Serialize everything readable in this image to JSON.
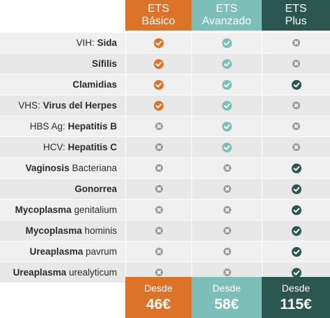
{
  "plans": [
    {
      "line1": "ETS",
      "line2": "Básico",
      "price_prefix": "Desde",
      "price": "46€",
      "color": "#dd7329"
    },
    {
      "line1": "ETS",
      "line2": "Avanzado",
      "price_prefix": "Desde",
      "price": "58€",
      "color": "#7cbfb8"
    },
    {
      "line1": "ETS",
      "line2": "Plus",
      "price_prefix": "Desde",
      "price": "115€",
      "color": "#2b5650"
    }
  ],
  "rows": [
    {
      "pre": "VIH: ",
      "bold": "Sida",
      "post": "",
      "included": [
        true,
        true,
        false
      ]
    },
    {
      "pre": "",
      "bold": "Sífilis",
      "post": "",
      "included": [
        true,
        true,
        false
      ]
    },
    {
      "pre": "",
      "bold": "Clamidias",
      "post": "",
      "included": [
        true,
        true,
        true
      ]
    },
    {
      "pre": "VHS: ",
      "bold": "Virus del Herpes",
      "post": "",
      "included": [
        true,
        true,
        false
      ]
    },
    {
      "pre": "HBS Ag: ",
      "bold": "Hepatitis B",
      "post": "",
      "included": [
        false,
        true,
        false
      ]
    },
    {
      "pre": "HCV: ",
      "bold": "Hepatitis C",
      "post": "",
      "included": [
        false,
        true,
        false
      ]
    },
    {
      "pre": "",
      "bold": "Vaginosis",
      "post": " Bacteriana",
      "included": [
        false,
        false,
        true
      ]
    },
    {
      "pre": "",
      "bold": "Gonorrea",
      "post": "",
      "included": [
        false,
        false,
        true
      ]
    },
    {
      "pre": "",
      "bold": "Mycoplasma",
      "post": " genitalium",
      "included": [
        false,
        false,
        true
      ]
    },
    {
      "pre": "",
      "bold": "Mycoplasma",
      "post": " hominis",
      "included": [
        false,
        false,
        true
      ]
    },
    {
      "pre": "",
      "bold": "Ureaplasma",
      "post": " pavrum",
      "included": [
        false,
        false,
        true
      ]
    },
    {
      "pre": "",
      "bold": "Ureaplasma",
      "post": " urealyticum",
      "included": [
        false,
        false,
        true
      ]
    }
  ],
  "icons": {
    "included": "check-icon",
    "excluded": "x-icon"
  }
}
